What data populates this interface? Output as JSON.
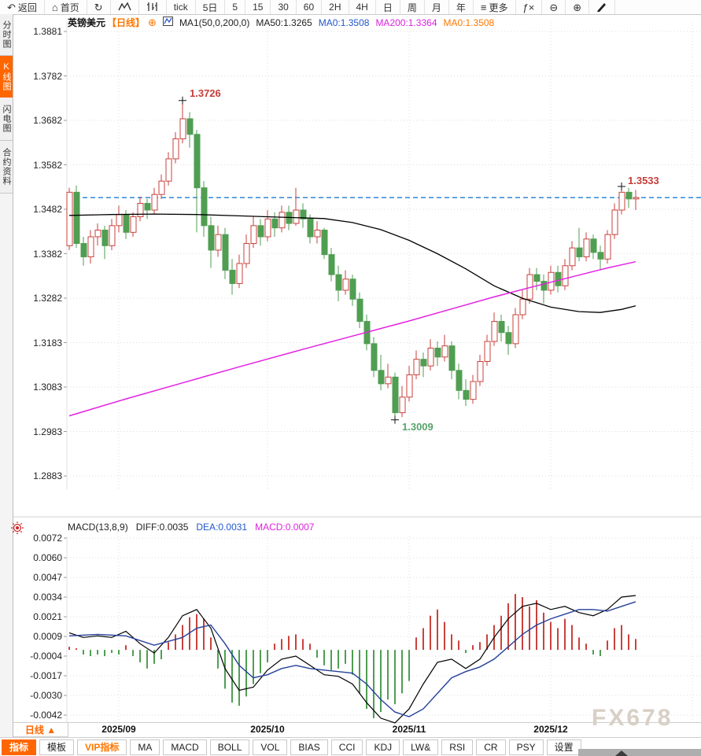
{
  "top_toolbar": {
    "items": [
      {
        "name": "back",
        "glyph": "↶",
        "label": "返回"
      },
      {
        "name": "home",
        "glyph": "⌂",
        "label": "首页"
      },
      {
        "name": "refresh",
        "glyph": "↻",
        "label": ""
      },
      {
        "name": "line-chart",
        "icon": "line-chart",
        "label": ""
      },
      {
        "name": "candlestick",
        "icon": "candles",
        "label": ""
      },
      {
        "name": "interval-tick",
        "label": "tick"
      },
      {
        "name": "interval-5d",
        "label": "5日"
      },
      {
        "name": "interval-5",
        "label": "5"
      },
      {
        "name": "interval-15",
        "label": "15"
      },
      {
        "name": "interval-30",
        "label": "30"
      },
      {
        "name": "interval-60",
        "label": "60"
      },
      {
        "name": "interval-2h",
        "label": "2H"
      },
      {
        "name": "interval-4h",
        "label": "4H"
      },
      {
        "name": "interval-day",
        "label": "日"
      },
      {
        "name": "interval-week",
        "label": "周"
      },
      {
        "name": "interval-month",
        "label": "月"
      },
      {
        "name": "interval-year",
        "label": "年"
      },
      {
        "name": "more",
        "glyph": "≡",
        "label": "更多"
      },
      {
        "name": "fx",
        "glyph": "ƒ×",
        "label": ""
      },
      {
        "name": "zoom-out",
        "glyph": "⊖",
        "label": ""
      },
      {
        "name": "zoom-in",
        "glyph": "⊕",
        "label": ""
      },
      {
        "name": "draw",
        "icon": "pencil",
        "label": ""
      }
    ]
  },
  "sidebar": {
    "tabs": [
      {
        "label": "分时图",
        "active": false
      },
      {
        "label": "K线图",
        "active": true
      },
      {
        "label": "闪电图",
        "active": false
      },
      {
        "label": "合约资料",
        "active": false
      }
    ]
  },
  "chart_header": {
    "symbol": "英镑美元",
    "period": "【日线】",
    "plus": "⊕",
    "ma_config": "MA1(50,0,200,0)",
    "ma50": "MA50:1.3265",
    "ma0_blue": "MA0:1.3508",
    "ma200": "MA200:1.3364",
    "ma0_orange": "MA0:1.3508"
  },
  "macd_header": {
    "title": "MACD(13,8,9)",
    "diff": "DIFF:0.0035",
    "dea": "DEA:0.0031",
    "macd": "MACD:0.0007"
  },
  "annotations": {
    "high": "1.3726",
    "recent_high": "1.3533",
    "low": "1.3009"
  },
  "x_axis": {
    "period_label": "日线 ▲"
  },
  "bottom_toolbar": {
    "buttons": [
      {
        "label": "指标",
        "active": true
      },
      {
        "label": "模板"
      },
      {
        "label": "VIP指标",
        "vip": true
      },
      {
        "label": "MA"
      },
      {
        "label": "MACD"
      },
      {
        "label": "BOLL"
      },
      {
        "label": "VOL"
      },
      {
        "label": "BIAS"
      },
      {
        "label": "CCI"
      },
      {
        "label": "KDJ"
      },
      {
        "label": "LW&"
      },
      {
        "label": "RSI"
      },
      {
        "label": "CR"
      },
      {
        "label": "PSY"
      },
      {
        "label": "设置"
      }
    ]
  },
  "watermark": "FX678",
  "colors": {
    "up_candle": "#c9423c",
    "down_candle": "#4f9e52",
    "ma50_line": "#000000",
    "ma200_line": "#e322e3",
    "diff_line": "#000000",
    "dea_line": "#26409a",
    "price_line": "#1f7cd4",
    "accent_orange": "#ff6600",
    "annotation_red": "#c43e3a",
    "annotation_green": "#58a36b",
    "grid": "#dcdce4"
  },
  "chart_data": {
    "type": "candlestick",
    "symbol": "英镑美元",
    "period": "日线",
    "price_axis_ticks": [
      "1.3881",
      "1.3782",
      "1.3682",
      "1.3582",
      "1.3482",
      "1.3382",
      "1.3282",
      "1.3183",
      "1.3083",
      "1.2983",
      "1.2883"
    ],
    "current_price": 1.3508,
    "months": [
      {
        "label": "2025/09",
        "start_index": 7
      },
      {
        "label": "2025/10",
        "start_index": 28
      },
      {
        "label": "2025/11",
        "start_index": 48
      },
      {
        "label": "2025/12",
        "start_index": 68
      }
    ],
    "next_month_grid_index": 88,
    "key_points": {
      "high": {
        "index": 16,
        "price": 1.3726
      },
      "low": {
        "index": 46,
        "price": 1.3009
      },
      "recent_high": {
        "index": 78,
        "price": 1.3533
      }
    },
    "candles": [
      [
        1.34,
        1.353,
        1.339,
        1.352
      ],
      [
        1.352,
        1.3535,
        1.3395,
        1.3405
      ],
      [
        1.3405,
        1.342,
        1.3355,
        1.3375
      ],
      [
        1.3375,
        1.3435,
        1.336,
        1.342
      ],
      [
        1.342,
        1.345,
        1.34,
        1.3435
      ],
      [
        1.3435,
        1.3445,
        1.337,
        1.34
      ],
      [
        1.34,
        1.346,
        1.339,
        1.3445
      ],
      [
        1.3445,
        1.349,
        1.343,
        1.347
      ],
      [
        1.347,
        1.348,
        1.3415,
        1.343
      ],
      [
        1.343,
        1.3475,
        1.342,
        1.3465
      ],
      [
        1.3465,
        1.351,
        1.3455,
        1.3495
      ],
      [
        1.3495,
        1.3505,
        1.346,
        1.348
      ],
      [
        1.348,
        1.353,
        1.347,
        1.3515
      ],
      [
        1.3515,
        1.356,
        1.3505,
        1.3545
      ],
      [
        1.3545,
        1.361,
        1.3535,
        1.3595
      ],
      [
        1.3595,
        1.3655,
        1.3585,
        1.364
      ],
      [
        1.364,
        1.3726,
        1.363,
        1.3685
      ],
      [
        1.3685,
        1.37,
        1.362,
        1.365
      ],
      [
        1.365,
        1.366,
        1.343,
        1.353
      ],
      [
        1.353,
        1.3545,
        1.342,
        1.3445
      ],
      [
        1.3445,
        1.3465,
        1.335,
        1.339
      ],
      [
        1.339,
        1.3445,
        1.3375,
        1.3425
      ],
      [
        1.3425,
        1.344,
        1.3325,
        1.3345
      ],
      [
        1.3345,
        1.337,
        1.329,
        1.3315
      ],
      [
        1.3315,
        1.338,
        1.3305,
        1.336
      ],
      [
        1.336,
        1.3425,
        1.335,
        1.3405
      ],
      [
        1.3405,
        1.3465,
        1.3395,
        1.3445
      ],
      [
        1.3445,
        1.346,
        1.34,
        1.342
      ],
      [
        1.342,
        1.348,
        1.341,
        1.346
      ],
      [
        1.346,
        1.3475,
        1.342,
        1.344
      ],
      [
        1.344,
        1.349,
        1.343,
        1.3475
      ],
      [
        1.3475,
        1.349,
        1.3435,
        1.345
      ],
      [
        1.345,
        1.353,
        1.3445,
        1.348
      ],
      [
        1.348,
        1.3495,
        1.344,
        1.346
      ],
      [
        1.346,
        1.347,
        1.3405,
        1.342
      ],
      [
        1.342,
        1.3455,
        1.3405,
        1.3435
      ],
      [
        1.3435,
        1.344,
        1.337,
        1.338
      ],
      [
        1.338,
        1.3395,
        1.332,
        1.3335
      ],
      [
        1.3335,
        1.3355,
        1.3275,
        1.33
      ],
      [
        1.33,
        1.3345,
        1.329,
        1.3325
      ],
      [
        1.3325,
        1.3335,
        1.3265,
        1.328
      ],
      [
        1.328,
        1.3295,
        1.3215,
        1.323
      ],
      [
        1.323,
        1.3245,
        1.3165,
        1.318
      ],
      [
        1.318,
        1.3195,
        1.3105,
        1.312
      ],
      [
        1.312,
        1.3155,
        1.3075,
        1.309
      ],
      [
        1.309,
        1.3135,
        1.308,
        1.3105
      ],
      [
        1.3105,
        1.3115,
        1.3009,
        1.3025
      ],
      [
        1.3025,
        1.3085,
        1.3015,
        1.306
      ],
      [
        1.306,
        1.313,
        1.305,
        1.311
      ],
      [
        1.311,
        1.3165,
        1.31,
        1.3145
      ],
      [
        1.3145,
        1.316,
        1.3105,
        1.313
      ],
      [
        1.313,
        1.319,
        1.312,
        1.317
      ],
      [
        1.317,
        1.3185,
        1.313,
        1.315
      ],
      [
        1.315,
        1.32,
        1.314,
        1.3175
      ],
      [
        1.3175,
        1.3185,
        1.31,
        1.312
      ],
      [
        1.312,
        1.3135,
        1.3055,
        1.3075
      ],
      [
        1.3075,
        1.31,
        1.304,
        1.3055
      ],
      [
        1.3055,
        1.311,
        1.3045,
        1.3095
      ],
      [
        1.3095,
        1.3155,
        1.3085,
        1.314
      ],
      [
        1.314,
        1.32,
        1.313,
        1.3185
      ],
      [
        1.3185,
        1.325,
        1.3175,
        1.323
      ],
      [
        1.323,
        1.3245,
        1.3185,
        1.3205
      ],
      [
        1.3205,
        1.322,
        1.3155,
        1.318
      ],
      [
        1.318,
        1.326,
        1.317,
        1.3245
      ],
      [
        1.3245,
        1.33,
        1.3235,
        1.328
      ],
      [
        1.328,
        1.335,
        1.327,
        1.3335
      ],
      [
        1.3335,
        1.335,
        1.33,
        1.332
      ],
      [
        1.332,
        1.3335,
        1.327,
        1.33
      ],
      [
        1.33,
        1.3355,
        1.329,
        1.334
      ],
      [
        1.334,
        1.3355,
        1.3295,
        1.331
      ],
      [
        1.331,
        1.337,
        1.33,
        1.3355
      ],
      [
        1.3355,
        1.341,
        1.3345,
        1.3395
      ],
      [
        1.3395,
        1.344,
        1.3365,
        1.3375
      ],
      [
        1.3375,
        1.343,
        1.3365,
        1.3415
      ],
      [
        1.3415,
        1.3425,
        1.337,
        1.3385
      ],
      [
        1.3385,
        1.34,
        1.3345,
        1.337
      ],
      [
        1.337,
        1.3435,
        1.336,
        1.3425
      ],
      [
        1.3425,
        1.3495,
        1.3415,
        1.348
      ],
      [
        1.348,
        1.3533,
        1.347,
        1.352
      ],
      [
        1.352,
        1.353,
        1.3485,
        1.3505
      ],
      [
        1.3505,
        1.3525,
        1.348,
        1.3508
      ]
    ],
    "ma50": [
      [
        0,
        1.3468
      ],
      [
        6,
        1.347
      ],
      [
        12,
        1.3471
      ],
      [
        18,
        1.347
      ],
      [
        24,
        1.3467
      ],
      [
        30,
        1.3464
      ],
      [
        36,
        1.3461
      ],
      [
        40,
        1.3452
      ],
      [
        44,
        1.3436
      ],
      [
        48,
        1.3412
      ],
      [
        52,
        1.3382
      ],
      [
        56,
        1.3348
      ],
      [
        60,
        1.331
      ],
      [
        64,
        1.3282
      ],
      [
        68,
        1.3262
      ],
      [
        72,
        1.3252
      ],
      [
        75,
        1.325
      ],
      [
        78,
        1.3257
      ],
      [
        80,
        1.3265
      ]
    ],
    "ma200": [
      [
        0,
        1.3018
      ],
      [
        8,
        1.3056
      ],
      [
        16,
        1.3092
      ],
      [
        24,
        1.3128
      ],
      [
        32,
        1.3163
      ],
      [
        40,
        1.3197
      ],
      [
        48,
        1.3231
      ],
      [
        54,
        1.3258
      ],
      [
        60,
        1.3285
      ],
      [
        66,
        1.331
      ],
      [
        72,
        1.3334
      ],
      [
        76,
        1.335
      ],
      [
        80,
        1.3364
      ]
    ],
    "macd": {
      "params": "(13,8,9)",
      "axis_ticks": [
        "0.0072",
        "0.0060",
        "0.0047",
        "0.0034",
        "0.0021",
        "0.0009",
        "-0.0004",
        "-0.0017",
        "-0.0030",
        "-0.0042"
      ],
      "diff_last": 0.0035,
      "dea_last": 0.0031,
      "hist_last": 0.0007,
      "hist": [
        0.0002,
        0.0001,
        -0.0003,
        -0.0004,
        -0.0003,
        -0.0004,
        -0.0002,
        -0.0003,
        0.0003,
        -0.0004,
        -0.0008,
        -0.0012,
        -0.0009,
        -0.0006,
        0.0005,
        0.001,
        0.0016,
        0.0021,
        0.0023,
        0.002,
        0.0008,
        -0.0012,
        -0.0025,
        -0.0034,
        -0.0036,
        -0.003,
        -0.0022,
        -0.0015,
        -0.0008,
        0.0004,
        0.0007,
        0.0009,
        0.001,
        0.0007,
        0.0004,
        -0.0005,
        -0.001,
        -0.0013,
        -0.0012,
        -0.0009,
        -0.0016,
        -0.0028,
        -0.0038,
        -0.0044,
        -0.004,
        -0.0032,
        -0.0035,
        -0.0028,
        -0.002,
        0.0008,
        0.0014,
        0.0022,
        0.0026,
        0.0018,
        0.001,
        0.0006,
        -0.0002,
        0.0003,
        0.0005,
        0.001,
        0.0016,
        0.0022,
        0.003,
        0.0036,
        0.0034,
        0.0028,
        0.0032,
        0.0024,
        0.0018,
        0.0014,
        0.002,
        0.0016,
        0.0008,
        0.0004,
        -0.0003,
        -0.0004,
        0.0006,
        0.0014,
        0.0016,
        0.001,
        0.0007
      ],
      "diff": [
        [
          0,
          0.0011
        ],
        [
          2,
          0.0008
        ],
        [
          4,
          0.0009
        ],
        [
          6,
          0.0008
        ],
        [
          8,
          0.0012
        ],
        [
          10,
          0.0004
        ],
        [
          12,
          -0.0002
        ],
        [
          14,
          0.0008
        ],
        [
          16,
          0.0022
        ],
        [
          18,
          0.0026
        ],
        [
          20,
          0.0014
        ],
        [
          22,
          -0.0012
        ],
        [
          24,
          -0.0026
        ],
        [
          26,
          -0.0024
        ],
        [
          28,
          -0.0013
        ],
        [
          30,
          -0.0006
        ],
        [
          32,
          -0.0004
        ],
        [
          34,
          -0.001
        ],
        [
          36,
          -0.0016
        ],
        [
          38,
          -0.0017
        ],
        [
          40,
          -0.0022
        ],
        [
          42,
          -0.0034
        ],
        [
          44,
          -0.0044
        ],
        [
          46,
          -0.0047
        ],
        [
          48,
          -0.0038
        ],
        [
          50,
          -0.0022
        ],
        [
          52,
          -0.0008
        ],
        [
          54,
          -0.0006
        ],
        [
          56,
          -0.0012
        ],
        [
          58,
          -0.0006
        ],
        [
          60,
          0.0008
        ],
        [
          62,
          0.002
        ],
        [
          64,
          0.0028
        ],
        [
          66,
          0.003
        ],
        [
          68,
          0.0026
        ],
        [
          70,
          0.0028
        ],
        [
          72,
          0.0024
        ],
        [
          74,
          0.0022
        ],
        [
          76,
          0.0026
        ],
        [
          78,
          0.0034
        ],
        [
          80,
          0.0035
        ]
      ],
      "dea": [
        [
          0,
          0.0009
        ],
        [
          4,
          0.001
        ],
        [
          8,
          0.0009
        ],
        [
          12,
          0.0003
        ],
        [
          16,
          0.0008
        ],
        [
          18,
          0.0014
        ],
        [
          20,
          0.0016
        ],
        [
          22,
          0.0004
        ],
        [
          24,
          -0.001
        ],
        [
          26,
          -0.0018
        ],
        [
          28,
          -0.0016
        ],
        [
          30,
          -0.0012
        ],
        [
          32,
          -0.001
        ],
        [
          34,
          -0.0012
        ],
        [
          36,
          -0.0013
        ],
        [
          38,
          -0.0014
        ],
        [
          40,
          -0.0015
        ],
        [
          42,
          -0.0022
        ],
        [
          44,
          -0.0032
        ],
        [
          46,
          -0.004
        ],
        [
          48,
          -0.0043
        ],
        [
          50,
          -0.0038
        ],
        [
          52,
          -0.0028
        ],
        [
          54,
          -0.0018
        ],
        [
          56,
          -0.0014
        ],
        [
          58,
          -0.0011
        ],
        [
          60,
          -0.0006
        ],
        [
          62,
          0.0002
        ],
        [
          64,
          0.001
        ],
        [
          66,
          0.0016
        ],
        [
          68,
          0.002
        ],
        [
          70,
          0.0023
        ],
        [
          72,
          0.0026
        ],
        [
          74,
          0.0026
        ],
        [
          76,
          0.0025
        ],
        [
          78,
          0.0028
        ],
        [
          80,
          0.0031
        ]
      ]
    }
  }
}
